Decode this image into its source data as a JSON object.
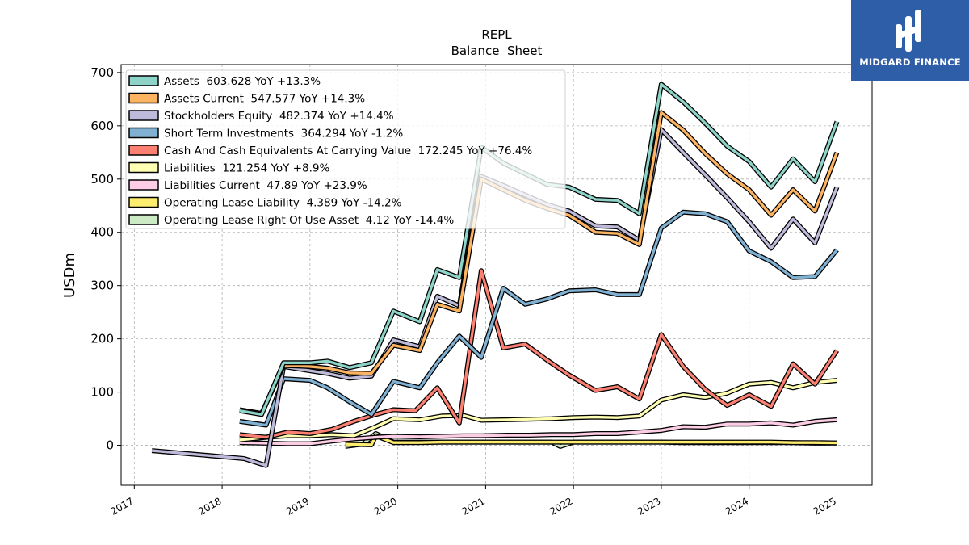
{
  "brand": {
    "name": "MIDGARD FINANCE",
    "bg_color": "#2f5ea8"
  },
  "chart_data": {
    "type": "line",
    "title": "REPL",
    "subtitle": "Balance  Sheet",
    "xlabel": "",
    "ylabel": "USDm",
    "xlim": [
      2016.85,
      2025.4
    ],
    "ylim": [
      -75,
      715
    ],
    "yticks": [
      0,
      100,
      200,
      300,
      400,
      500,
      600,
      700
    ],
    "xticks": [
      "2017",
      "2018",
      "2019",
      "2020",
      "2021",
      "2022",
      "2023",
      "2024",
      "2025"
    ],
    "grid": true,
    "legend_position": "top-left",
    "series": [
      {
        "name": "Assets  603.628 YoY +13.3%",
        "color": "#8dd3c7",
        "x": [
          2018.2,
          2018.45,
          2018.7,
          2019.0,
          2019.2,
          2019.45,
          2019.7,
          2019.95,
          2020.25,
          2020.45,
          2020.7,
          2020.95,
          2021.2,
          2021.45,
          2021.7,
          2021.95,
          2022.25,
          2022.5,
          2022.75,
          2023.0,
          2023.25,
          2023.5,
          2023.75,
          2024.0,
          2024.25,
          2024.5,
          2024.75,
          2025.0
        ],
        "values": [
          65,
          58,
          155,
          155,
          158,
          146,
          155,
          252,
          232,
          330,
          315,
          560,
          530,
          510,
          490,
          485,
          462,
          460,
          435,
          678,
          645,
          605,
          562,
          533,
          485,
          538,
          495,
          608
        ]
      },
      {
        "name": "Assets Current  547.577 YoY +14.3%",
        "color": "#fdb462",
        "x": [
          2018.2,
          2018.45,
          2018.7,
          2019.0,
          2019.2,
          2019.45,
          2019.7,
          2019.95,
          2020.25,
          2020.45,
          2020.7,
          2020.95,
          2021.2,
          2021.45,
          2021.7,
          2021.95,
          2022.25,
          2022.5,
          2022.75,
          2023.0,
          2023.25,
          2023.5,
          2023.75,
          2024.0,
          2024.25,
          2024.5,
          2024.75,
          2025.0
        ],
        "values": [
          67,
          60,
          150,
          148,
          145,
          136,
          135,
          188,
          178,
          265,
          252,
          500,
          480,
          460,
          445,
          432,
          400,
          398,
          377,
          625,
          592,
          548,
          510,
          480,
          432,
          480,
          440,
          550
        ]
      },
      {
        "name": "Stockholders Equity  482.374 YoY +14.4%",
        "color": "#bebada",
        "x": [
          2017.2,
          2018.25,
          2018.5,
          2018.7,
          2019.0,
          2019.2,
          2019.45,
          2019.7,
          2019.95,
          2020.25,
          2020.45,
          2020.7,
          2020.95,
          2021.2,
          2021.45,
          2021.7,
          2021.95,
          2022.25,
          2022.5,
          2022.75,
          2023.0,
          2023.25,
          2023.5,
          2023.75,
          2024.0,
          2024.25,
          2024.5,
          2024.75,
          2025.0
        ],
        "values": [
          -10,
          -25,
          -38,
          148,
          140,
          135,
          126,
          130,
          198,
          185,
          280,
          262,
          505,
          488,
          470,
          452,
          440,
          412,
          410,
          385,
          593,
          550,
          508,
          465,
          420,
          370,
          425,
          380,
          485
        ]
      },
      {
        "name": "Short Term Investments  364.294 YoY -1.2%",
        "color": "#80b1d3",
        "x": [
          2018.2,
          2018.5,
          2018.7,
          2019.0,
          2019.2,
          2019.45,
          2019.7,
          2019.95,
          2020.25,
          2020.45,
          2020.7,
          2020.95,
          2021.2,
          2021.45,
          2021.7,
          2021.95,
          2022.25,
          2022.5,
          2022.75,
          2023.0,
          2023.25,
          2023.5,
          2023.75,
          2024.0,
          2024.25,
          2024.5,
          2024.75,
          2025.0
        ],
        "values": [
          45,
          38,
          125,
          122,
          108,
          82,
          58,
          120,
          108,
          155,
          205,
          165,
          295,
          265,
          275,
          290,
          292,
          283,
          283,
          408,
          438,
          435,
          420,
          365,
          345,
          315,
          317,
          367
        ]
      },
      {
        "name": "Cash And Cash Equivalents At Carrying Value  172.245 YoY +76.4%",
        "color": "#fb8072",
        "x": [
          2018.2,
          2018.5,
          2018.75,
          2019.0,
          2019.25,
          2019.5,
          2019.75,
          2019.95,
          2020.2,
          2020.45,
          2020.7,
          2020.95,
          2021.2,
          2021.45,
          2021.7,
          2021.95,
          2022.25,
          2022.5,
          2022.75,
          2023.0,
          2023.25,
          2023.5,
          2023.75,
          2024.0,
          2024.25,
          2024.5,
          2024.75,
          2025.0
        ],
        "values": [
          20,
          15,
          25,
          22,
          30,
          45,
          58,
          67,
          65,
          108,
          42,
          328,
          183,
          190,
          160,
          132,
          103,
          110,
          87,
          208,
          148,
          105,
          75,
          95,
          73,
          153,
          115,
          178
        ]
      },
      {
        "name": "Liabilities  121.254 YoY +8.9%",
        "color": "#ffffb3",
        "x": [
          2018.2,
          2018.5,
          2018.75,
          2019.0,
          2019.25,
          2019.5,
          2019.75,
          2019.95,
          2020.25,
          2020.5,
          2020.75,
          2020.95,
          2021.25,
          2021.5,
          2021.75,
          2022.0,
          2022.25,
          2022.5,
          2022.75,
          2023.0,
          2023.25,
          2023.5,
          2023.75,
          2024.0,
          2024.25,
          2024.5,
          2024.75,
          2025.0
        ],
        "values": [
          10,
          15,
          18,
          18,
          20,
          18,
          35,
          50,
          48,
          55,
          56,
          47,
          48,
          49,
          50,
          52,
          53,
          52,
          55,
          85,
          95,
          90,
          98,
          115,
          118,
          108,
          118,
          122
        ]
      },
      {
        "name": "Liabilities Current  47.89 YoY +23.9%",
        "color": "#fccde5",
        "x": [
          2018.2,
          2018.5,
          2018.75,
          2019.0,
          2019.25,
          2019.5,
          2019.75,
          2019.95,
          2020.25,
          2020.5,
          2020.75,
          2020.95,
          2021.25,
          2021.5,
          2021.75,
          2022.0,
          2022.25,
          2022.5,
          2022.75,
          2023.0,
          2023.25,
          2023.5,
          2023.75,
          2024.0,
          2024.25,
          2024.5,
          2024.75,
          2025.0
        ],
        "values": [
          5,
          4,
          3,
          3,
          8,
          12,
          15,
          17,
          16,
          17,
          18,
          18,
          19,
          19,
          20,
          20,
          22,
          22,
          25,
          28,
          35,
          34,
          40,
          40,
          42,
          38,
          45,
          48
        ]
      },
      {
        "name": "Operating Lease Liability  4.389 YoY -14.2%",
        "color": "#ffed6f",
        "x": [
          2019.4,
          2019.7,
          2019.75,
          2019.95,
          2020.25,
          2020.5,
          2020.75,
          2021.0,
          2021.25,
          2021.5,
          2021.75,
          2022.0,
          2022.25,
          2022.5,
          2022.75,
          2023.0,
          2023.25,
          2023.5,
          2023.75,
          2024.0,
          2024.25,
          2024.5,
          2024.75,
          2025.0
        ],
        "values": [
          2,
          1,
          18,
          5,
          5,
          6,
          6,
          6,
          6,
          6,
          6,
          6,
          6,
          6,
          6,
          6,
          6,
          6,
          6,
          6,
          6,
          5,
          5,
          4.4
        ]
      },
      {
        "name": "Operating Lease Right Of Use Asset  4.12 YoY -14.4%",
        "color": "#ccebc5",
        "x": [
          2019.4,
          2019.6,
          2019.75,
          2019.95,
          2020.25,
          2020.5,
          2020.75,
          2021.0,
          2021.25,
          2021.5,
          2021.75,
          2021.85,
          2022.0,
          2022.25,
          2022.5,
          2022.75,
          2023.0,
          2023.25,
          2023.5,
          2023.75,
          2024.0,
          2024.25,
          2024.5,
          2024.75,
          2025.0
        ],
        "values": [
          -2,
          2,
          22,
          6,
          6,
          6,
          6,
          6,
          6,
          6,
          6,
          -2,
          6,
          6,
          6,
          6,
          6,
          5,
          5,
          5,
          5,
          5,
          5,
          4,
          4.1
        ]
      }
    ]
  }
}
